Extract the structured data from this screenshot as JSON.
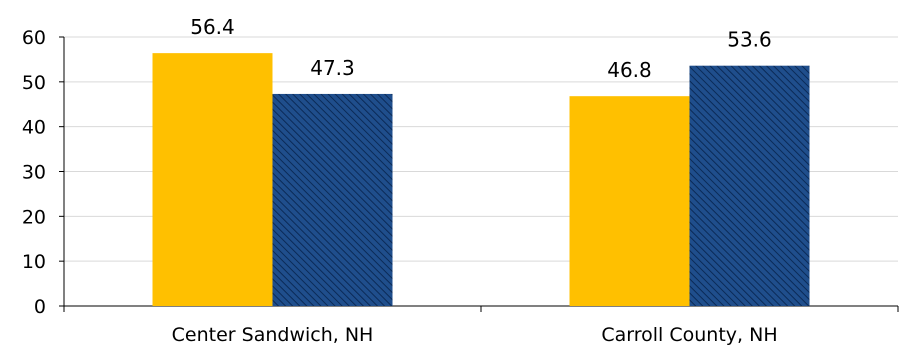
{
  "chart_data": {
    "type": "bar",
    "categories": [
      "Center Sandwich, NH",
      "Carroll County, NH"
    ],
    "series": [
      {
        "values": [
          56.4,
          46.8
        ],
        "color": "#FFC000",
        "pattern": "solid"
      },
      {
        "values": [
          47.3,
          53.6
        ],
        "color": "#1F4E8C",
        "pattern": "diagonal-hatch"
      }
    ],
    "ylim": [
      0,
      60
    ],
    "yticks": [
      0,
      10,
      20,
      30,
      40,
      50,
      60
    ],
    "data_labels": true,
    "grid": true,
    "legend": "none"
  }
}
